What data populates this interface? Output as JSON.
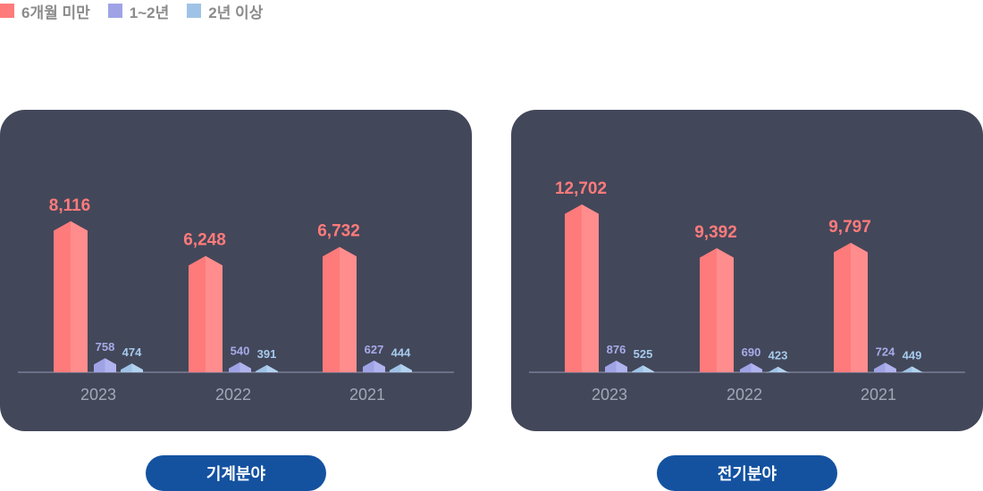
{
  "legend": {
    "items": [
      {
        "label": "6개월 미만",
        "color": "#ff7b7b"
      },
      {
        "label": "1~2년",
        "color": "#9fa3e6"
      },
      {
        "label": "2년 이상",
        "color": "#9fc3e6"
      }
    ]
  },
  "chart_data": [
    {
      "type": "bar",
      "name": "기계분야",
      "categories": [
        "2023",
        "2022",
        "2021"
      ],
      "series": [
        {
          "name": "6개월 미만",
          "values": [
            8116,
            6248,
            6732
          ],
          "labels": [
            "8,116",
            "6,248",
            "6,732"
          ]
        },
        {
          "name": "1~2년",
          "values": [
            758,
            540,
            627
          ],
          "labels": [
            "758",
            "540",
            "627"
          ]
        },
        {
          "name": "2년 이상",
          "values": [
            474,
            391,
            444
          ],
          "labels": [
            "474",
            "391",
            "444"
          ]
        }
      ],
      "legend_position": "top-left",
      "grid": false
    },
    {
      "type": "bar",
      "name": "전기분야",
      "categories": [
        "2023",
        "2022",
        "2021"
      ],
      "series": [
        {
          "name": "6개월 미만",
          "values": [
            12702,
            9392,
            9797
          ],
          "labels": [
            "12,702",
            "9,392",
            "9,797"
          ]
        },
        {
          "name": "1~2년",
          "values": [
            876,
            690,
            724
          ],
          "labels": [
            "876",
            "690",
            "724"
          ]
        },
        {
          "name": "2년 이상",
          "values": [
            525,
            423,
            449
          ],
          "labels": [
            "525",
            "423",
            "449"
          ]
        }
      ],
      "legend_position": "top-left",
      "grid": false
    }
  ]
}
